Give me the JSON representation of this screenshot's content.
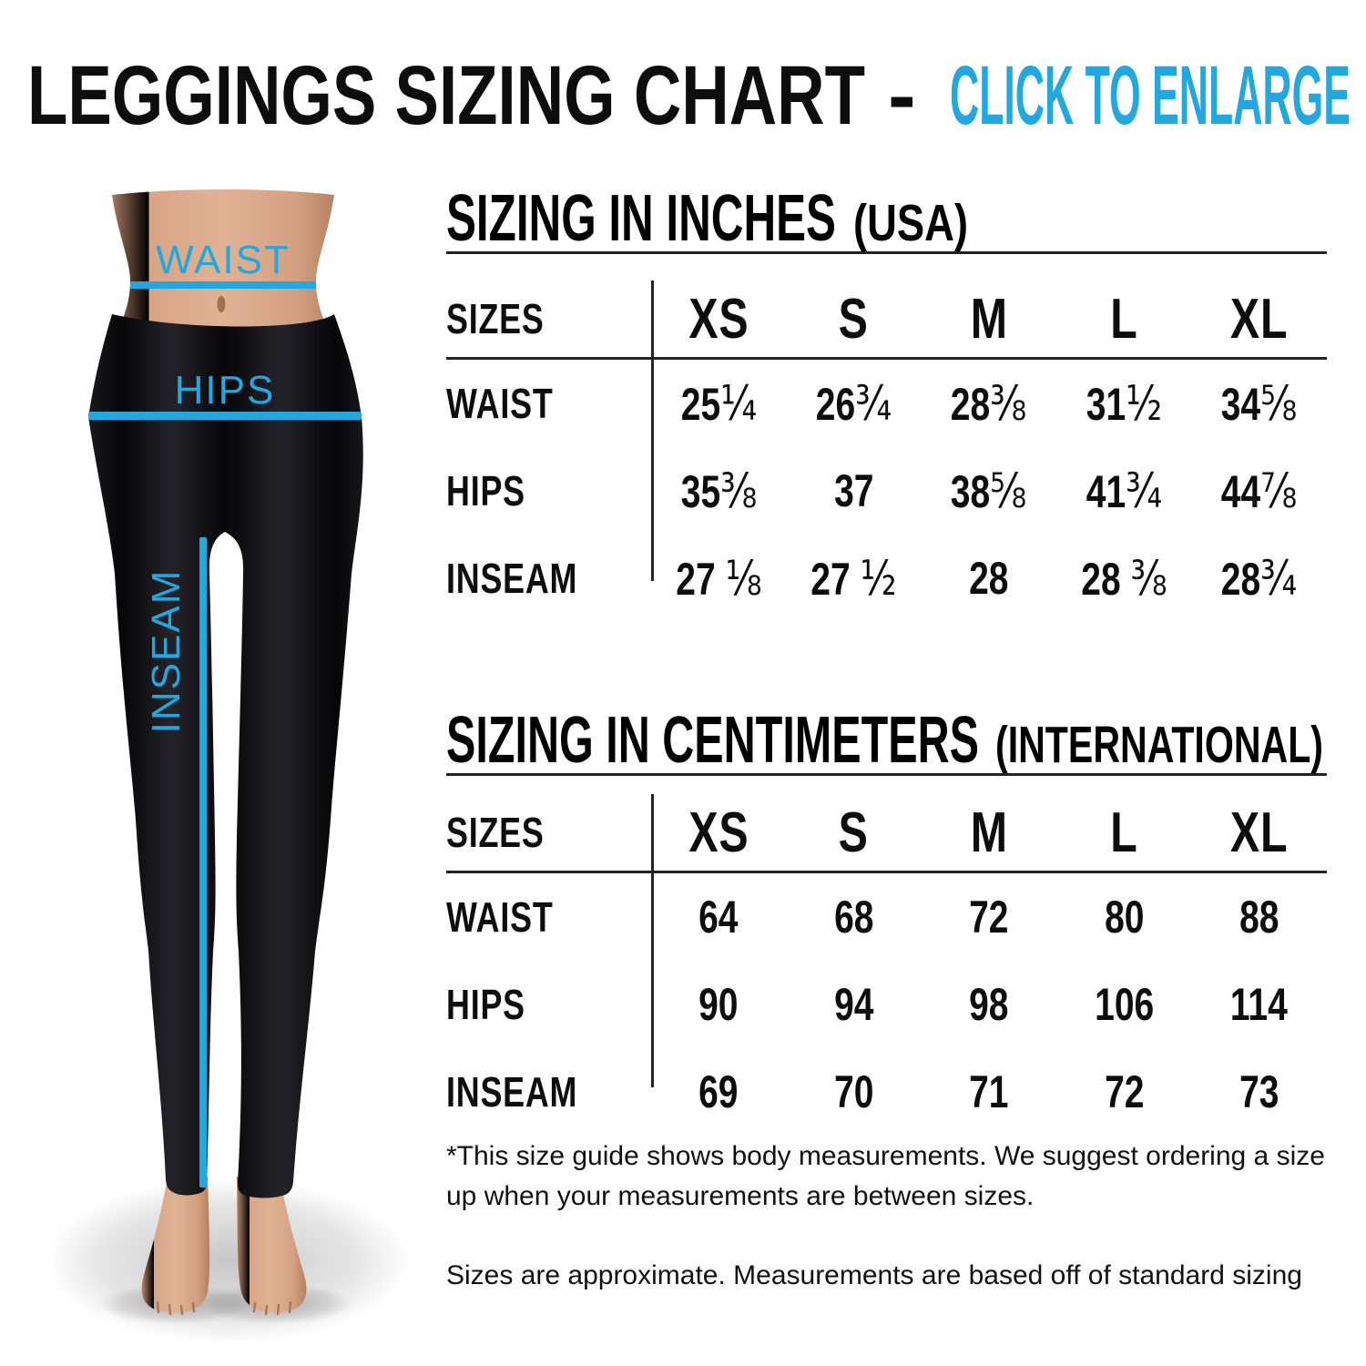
{
  "title": {
    "main": "LEGGINGS SIZING CHART",
    "separator": "-",
    "action": "CLICK TO ENLARGE"
  },
  "colors": {
    "accent_cyan": "#21a8e0",
    "text_black": "#0d0d0d",
    "leggings_black": "#0c0c0f",
    "skin": "#d4a285"
  },
  "figure": {
    "waist_label": "WAIST",
    "hips_label": "HIPS",
    "inseam_label": "INSEAM"
  },
  "tables": [
    {
      "heading": "SIZING IN INCHES",
      "heading_note": "(USA)",
      "header_label": "SIZES",
      "columns": [
        "XS",
        "S",
        "M",
        "L",
        "XL"
      ],
      "rows": [
        {
          "label": "WAIST",
          "values": [
            "25¼",
            "26¾",
            "28⅜",
            "31½",
            "34⅝"
          ]
        },
        {
          "label": "HIPS",
          "values": [
            "35⅜",
            "37",
            "38⅝",
            "41¾",
            "44⅞"
          ]
        },
        {
          "label": "INSEAM",
          "values": [
            "27 ⅛",
            "27 ½",
            "28",
            "28 ⅜",
            "28¾"
          ]
        }
      ]
    },
    {
      "heading": "SIZING IN CENTIMETERS",
      "heading_note": "(INTERNATIONAL)",
      "header_label": "SIZES",
      "columns": [
        "XS",
        "S",
        "M",
        "L",
        "XL"
      ],
      "rows": [
        {
          "label": "WAIST",
          "values": [
            "64",
            "68",
            "72",
            "80",
            "88"
          ]
        },
        {
          "label": "HIPS",
          "values": [
            "90",
            "94",
            "98",
            "106",
            "114"
          ]
        },
        {
          "label": "INSEAM",
          "values": [
            "69",
            "70",
            "71",
            "72",
            "73"
          ]
        }
      ]
    }
  ],
  "notes": [
    "*This size guide shows body measurements. We suggest ordering a size up when your measurements are between sizes.",
    "Sizes are approximate. Measurements are based off of standard sizing"
  ]
}
